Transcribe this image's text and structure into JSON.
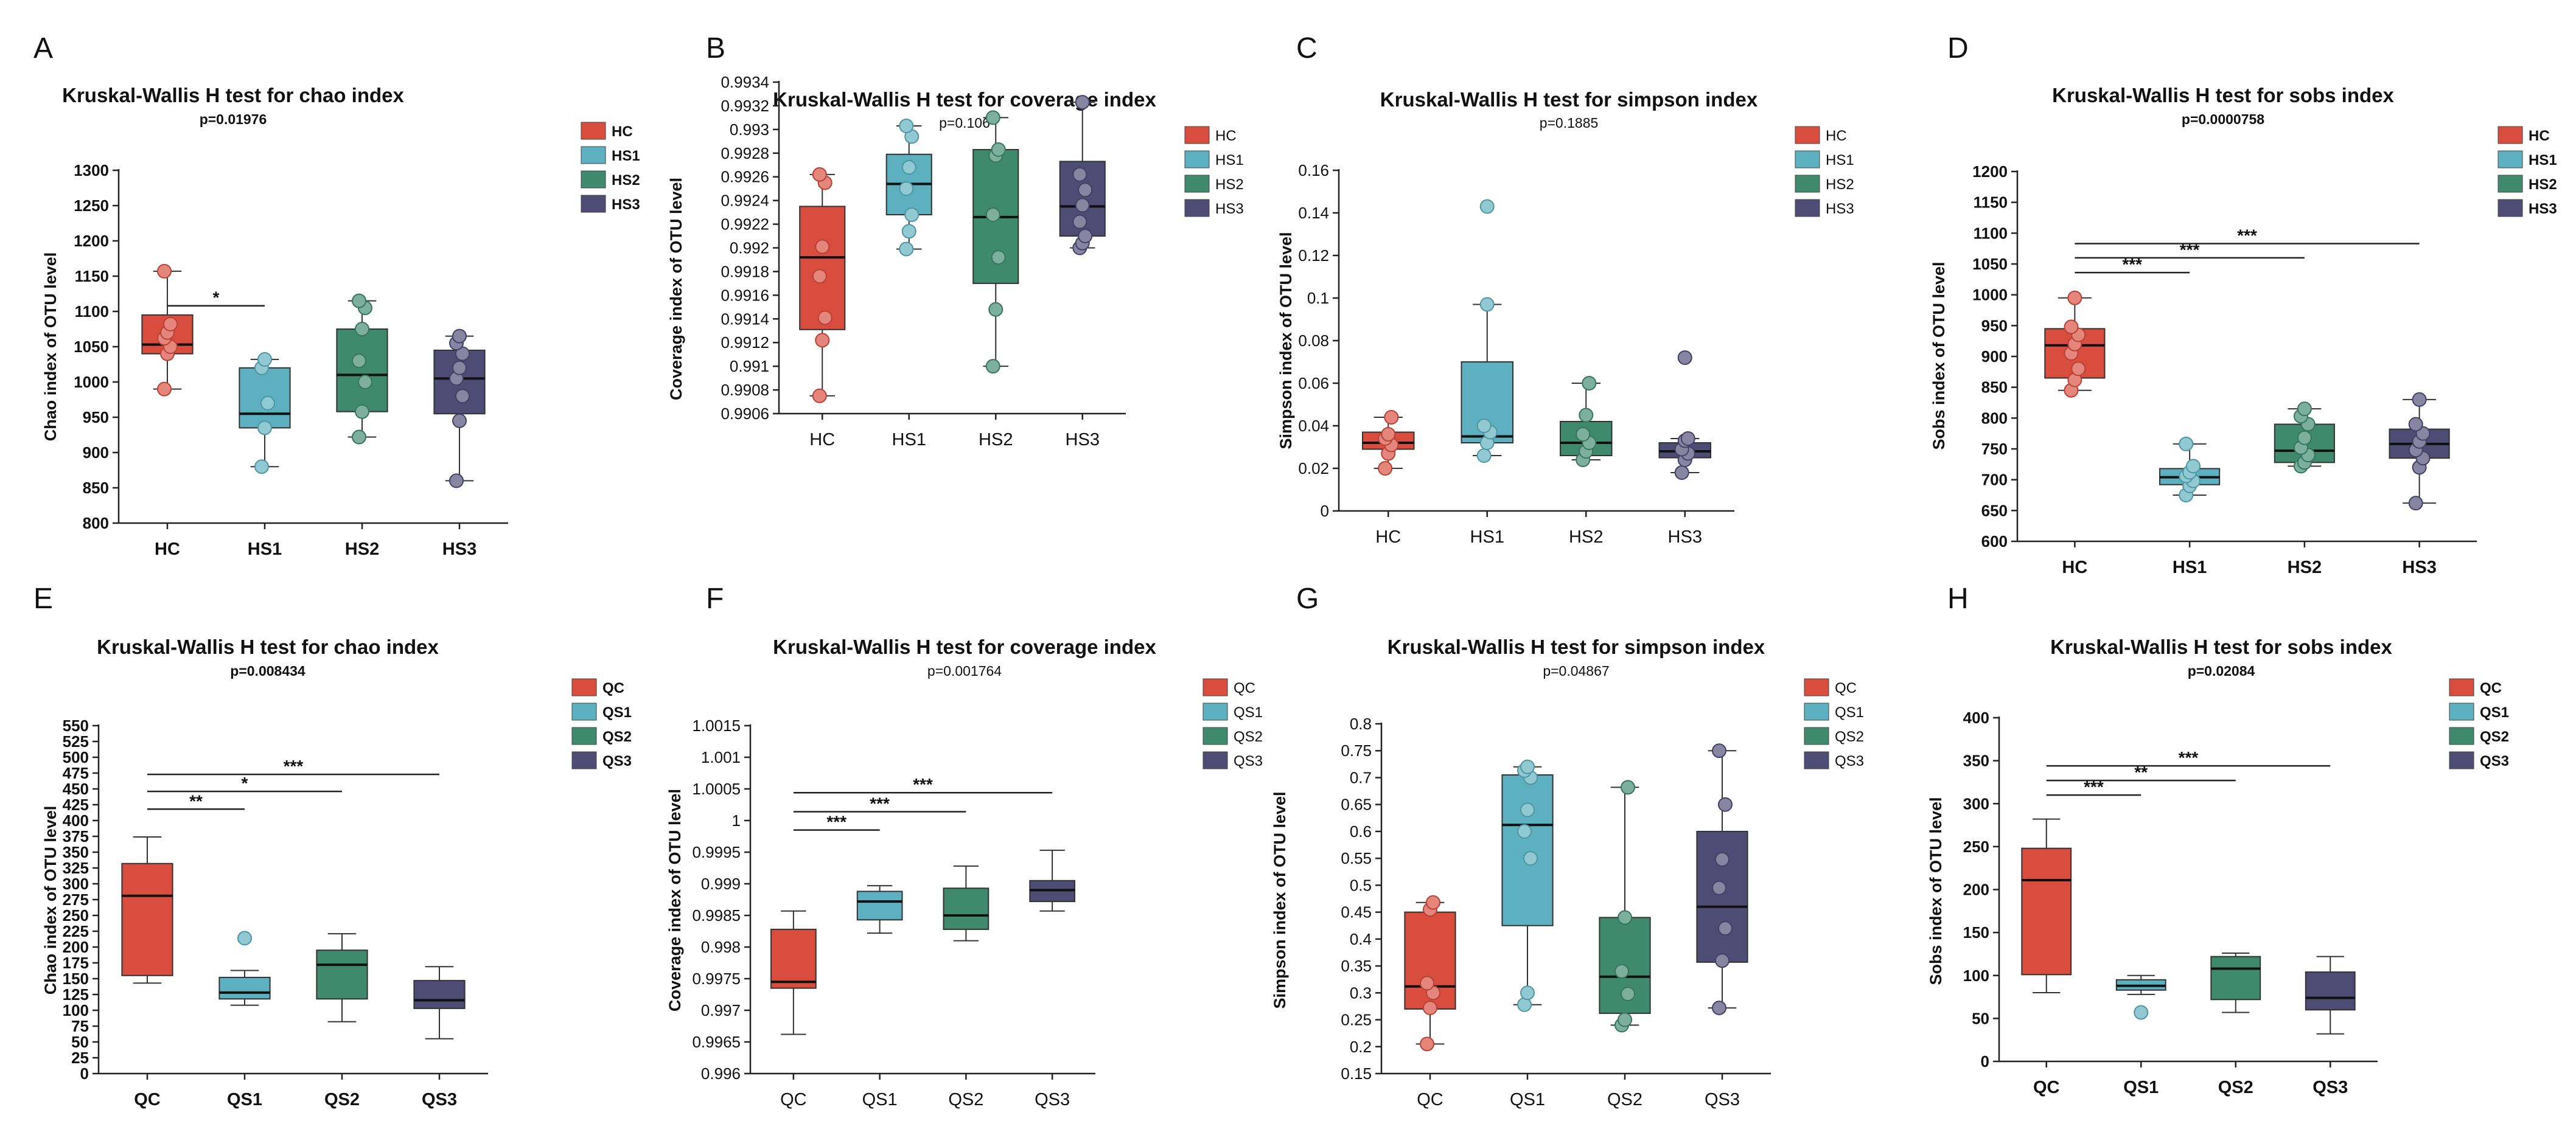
{
  "colors": {
    "C": "#d94d3f",
    "S1": "#5db0bf",
    "S2": "#3f8a6f",
    "S3": "#4e4b75",
    "axis": "#222222",
    "text": "#111111"
  },
  "chart_data": [
    {
      "panel": "A",
      "type": "box",
      "title": "Kruskal-Wallis H test for chao index",
      "subtitle": "p=0.01976",
      "bold_labels": true,
      "ylabel": "Chao index of OTU level",
      "ylim": [
        800,
        1300
      ],
      "yticks": [
        "800",
        "850",
        "900",
        "950",
        "1000",
        "1050",
        "1100",
        "1150",
        "1200",
        "1250",
        "1300"
      ],
      "categories": [
        "HC",
        "HS1",
        "HS2",
        "HS3"
      ],
      "legend": [
        "HC",
        "HS1",
        "HS2",
        "HS3"
      ],
      "boxes": [
        {
          "group": "HC",
          "whisker_low": 990,
          "q1": 1040,
          "median": 1053,
          "q3": 1095,
          "whisker_high": 1157,
          "points": [
            990,
            1040,
            1050,
            1062,
            1070,
            1082,
            1157
          ],
          "outliers": []
        },
        {
          "group": "HS1",
          "whisker_low": 880,
          "q1": 935,
          "median": 955,
          "q3": 1020,
          "whisker_high": 1032,
          "points": [
            880,
            935,
            970,
            1020,
            1032
          ],
          "outliers": []
        },
        {
          "group": "HS2",
          "whisker_low": 922,
          "q1": 958,
          "median": 1010,
          "q3": 1075,
          "whisker_high": 1115,
          "points": [
            922,
            958,
            1000,
            1030,
            1075,
            1105,
            1115
          ],
          "outliers": []
        },
        {
          "group": "HS3",
          "whisker_low": 860,
          "q1": 955,
          "median": 1005,
          "q3": 1045,
          "whisker_high": 1065,
          "points": [
            860,
            945,
            980,
            1005,
            1020,
            1040,
            1055,
            1065
          ],
          "outliers": []
        }
      ],
      "significance": [
        {
          "from": "HC",
          "to": "HS1",
          "label": "*",
          "y": 1108
        }
      ]
    },
    {
      "panel": "B",
      "type": "box",
      "title": "Kruskal-Wallis H test for coverage index",
      "subtitle": "p=0.106",
      "bold_labels": false,
      "ylabel": "Coverage index of OTU level",
      "ylim": [
        0.9906,
        0.9934
      ],
      "yticks": [
        "0.9906",
        "0.9908",
        "0.991",
        "0.9912",
        "0.9914",
        "0.9916",
        "0.9918",
        "0.992",
        "0.9922",
        "0.9924",
        "0.9926",
        "0.9928",
        "0.993",
        "0.9932",
        "0.9934"
      ],
      "categories": [
        "HC",
        "HS1",
        "HS2",
        "HS3"
      ],
      "legend": [
        "HC",
        "HS1",
        "HS2",
        "HS3"
      ],
      "boxes": [
        {
          "group": "HC",
          "whisker_low": 0.99075,
          "q1": 0.99131,
          "median": 0.99192,
          "q3": 0.99235,
          "whisker_high": 0.99262,
          "points": [
            0.99075,
            0.99122,
            0.99141,
            0.99176,
            0.99201,
            0.99255,
            0.99262
          ],
          "outliers": []
        },
        {
          "group": "HS1",
          "whisker_low": 0.99199,
          "q1": 0.99228,
          "median": 0.99254,
          "q3": 0.99279,
          "whisker_high": 0.99303,
          "points": [
            0.99199,
            0.99214,
            0.99228,
            0.9925,
            0.99268,
            0.99294,
            0.99303
          ],
          "outliers": []
        },
        {
          "group": "HS2",
          "whisker_low": 0.991,
          "q1": 0.9917,
          "median": 0.99226,
          "q3": 0.99283,
          "whisker_high": 0.9931,
          "points": [
            0.991,
            0.99148,
            0.99192,
            0.99228,
            0.99278,
            0.99283,
            0.9931
          ],
          "outliers": []
        },
        {
          "group": "HS3",
          "whisker_low": 0.992,
          "q1": 0.9921,
          "median": 0.99235,
          "q3": 0.99273,
          "whisker_high": 0.99323,
          "points": [
            0.992,
            0.99204,
            0.9921,
            0.99222,
            0.99236,
            0.99249,
            0.99262,
            0.99323
          ],
          "outliers": []
        }
      ],
      "significance": []
    },
    {
      "panel": "C",
      "type": "box",
      "title": "Kruskal-Wallis H test for simpson index",
      "subtitle": "p=0.1885",
      "bold_labels": false,
      "ylabel": "Simpson index of OTU level",
      "ylim": [
        0,
        0.16
      ],
      "yticks": [
        "0",
        "0.02",
        "0.04",
        "0.06",
        "0.08",
        "0.1",
        "0.12",
        "0.14",
        "0.16"
      ],
      "categories": [
        "HC",
        "HS1",
        "HS2",
        "HS3"
      ],
      "legend": [
        "HC",
        "HS1",
        "HS2",
        "HS3"
      ],
      "boxes": [
        {
          "group": "HC",
          "whisker_low": 0.02,
          "q1": 0.029,
          "median": 0.032,
          "q3": 0.037,
          "whisker_high": 0.044,
          "points": [
            0.02,
            0.027,
            0.031,
            0.034,
            0.036,
            0.044
          ],
          "outliers": []
        },
        {
          "group": "HS1",
          "whisker_low": 0.026,
          "q1": 0.032,
          "median": 0.035,
          "q3": 0.07,
          "whisker_high": 0.097,
          "points": [
            0.026,
            0.032,
            0.037,
            0.04,
            0.097
          ],
          "outliers": [
            0.143
          ]
        },
        {
          "group": "HS2",
          "whisker_low": 0.024,
          "q1": 0.026,
          "median": 0.032,
          "q3": 0.042,
          "whisker_high": 0.06,
          "points": [
            0.024,
            0.028,
            0.032,
            0.036,
            0.045,
            0.06
          ],
          "outliers": []
        },
        {
          "group": "HS3",
          "whisker_low": 0.018,
          "q1": 0.025,
          "median": 0.028,
          "q3": 0.032,
          "whisker_high": 0.034,
          "points": [
            0.018,
            0.024,
            0.027,
            0.029,
            0.033,
            0.034
          ],
          "outliers": [
            0.072
          ]
        }
      ],
      "significance": []
    },
    {
      "panel": "D",
      "type": "box",
      "title": "Kruskal-Wallis H test for sobs index",
      "subtitle": "p=0.0000758",
      "bold_labels": true,
      "ylabel": "Sobs index of OTU level",
      "ylim": [
        600,
        1200
      ],
      "yticks": [
        "600",
        "650",
        "700",
        "750",
        "800",
        "850",
        "900",
        "950",
        "1000",
        "1050",
        "1100",
        "1150",
        "1200"
      ],
      "categories": [
        "HC",
        "HS1",
        "HS2",
        "HS3"
      ],
      "legend": [
        "HC",
        "HS1",
        "HS2",
        "HS3"
      ],
      "boxes": [
        {
          "group": "HC",
          "whisker_low": 845,
          "q1": 865,
          "median": 918,
          "q3": 945,
          "whisker_high": 995,
          "points": [
            845,
            862,
            880,
            905,
            920,
            935,
            948,
            995
          ],
          "outliers": []
        },
        {
          "group": "HS1",
          "whisker_low": 675,
          "q1": 692,
          "median": 704,
          "q3": 718,
          "whisker_high": 758,
          "points": [
            675,
            690,
            698,
            706,
            712,
            722,
            758
          ],
          "outliers": []
        },
        {
          "group": "HS2",
          "whisker_low": 722,
          "q1": 728,
          "median": 747,
          "q3": 790,
          "whisker_high": 815,
          "points": [
            722,
            728,
            740,
            752,
            768,
            790,
            803,
            815
          ],
          "outliers": []
        },
        {
          "group": "HS3",
          "whisker_low": 662,
          "q1": 735,
          "median": 758,
          "q3": 782,
          "whisker_high": 830,
          "points": [
            662,
            720,
            735,
            748,
            762,
            775,
            790,
            830
          ],
          "outliers": []
        }
      ],
      "significance": [
        {
          "from": "HC",
          "to": "HS1",
          "label": "***",
          "y": 1036
        },
        {
          "from": "HC",
          "to": "HS2",
          "label": "***",
          "y": 1060
        },
        {
          "from": "HC",
          "to": "HS3",
          "label": "***",
          "y": 1083
        }
      ]
    },
    {
      "panel": "E",
      "type": "box",
      "title": "Kruskal-Wallis H test for chao index",
      "subtitle": "p=0.008434",
      "bold_labels": true,
      "ylabel": "Chao index of OTU level",
      "ylim": [
        0,
        550
      ],
      "yticks": [
        "0",
        "25",
        "50",
        "75",
        "100",
        "125",
        "150",
        "175",
        "200",
        "225",
        "250",
        "275",
        "300",
        "325",
        "350",
        "375",
        "400",
        "425",
        "450",
        "475",
        "500",
        "525",
        "550"
      ],
      "categories": [
        "QC",
        "QS1",
        "QS2",
        "QS3"
      ],
      "legend": [
        "QC",
        "QS1",
        "QS2",
        "QS3"
      ],
      "boxes": [
        {
          "group": "QC",
          "whisker_low": 143,
          "q1": 155,
          "median": 281,
          "q3": 332,
          "whisker_high": 374,
          "points": [],
          "outliers": []
        },
        {
          "group": "QS1",
          "whisker_low": 108,
          "q1": 118,
          "median": 128,
          "q3": 152,
          "whisker_high": 163,
          "points": [],
          "outliers": [
            214
          ]
        },
        {
          "group": "QS2",
          "whisker_low": 82,
          "q1": 118,
          "median": 172,
          "q3": 195,
          "whisker_high": 221,
          "points": [],
          "outliers": []
        },
        {
          "group": "QS3",
          "whisker_low": 55,
          "q1": 103,
          "median": 116,
          "q3": 147,
          "whisker_high": 169,
          "points": [],
          "outliers": []
        }
      ],
      "significance": [
        {
          "from": "QC",
          "to": "QS1",
          "label": "**",
          "y": 418
        },
        {
          "from": "QC",
          "to": "QS2",
          "label": "*",
          "y": 446
        },
        {
          "from": "QC",
          "to": "QS3",
          "label": "***",
          "y": 473
        }
      ]
    },
    {
      "panel": "F",
      "type": "box",
      "title": "Kruskal-Wallis H test for coverage index",
      "subtitle": "p=0.001764",
      "bold_labels": false,
      "ylabel": "Coverage index of OTU level",
      "ylim": [
        0.996,
        1.0015
      ],
      "yticks": [
        "0.996",
        "0.9965",
        "0.997",
        "0.9975",
        "0.998",
        "0.9985",
        "0.999",
        "0.9995",
        "1",
        "1.0005",
        "1.001",
        "1.0015"
      ],
      "categories": [
        "QC",
        "QS1",
        "QS2",
        "QS3"
      ],
      "legend": [
        "QC",
        "QS1",
        "QS2",
        "QS3"
      ],
      "boxes": [
        {
          "group": "QC",
          "whisker_low": 0.99662,
          "q1": 0.99735,
          "median": 0.99745,
          "q3": 0.99828,
          "whisker_high": 0.99857,
          "points": [],
          "outliers": []
        },
        {
          "group": "QS1",
          "whisker_low": 0.99822,
          "q1": 0.99843,
          "median": 0.99872,
          "q3": 0.99888,
          "whisker_high": 0.99897,
          "points": [],
          "outliers": []
        },
        {
          "group": "QS2",
          "whisker_low": 0.9981,
          "q1": 0.99828,
          "median": 0.9985,
          "q3": 0.99893,
          "whisker_high": 0.99928,
          "points": [],
          "outliers": []
        },
        {
          "group": "QS3",
          "whisker_low": 0.99857,
          "q1": 0.99872,
          "median": 0.9989,
          "q3": 0.99905,
          "whisker_high": 0.99953,
          "points": [],
          "outliers": []
        }
      ],
      "significance": [
        {
          "from": "QC",
          "to": "QS1",
          "label": "***",
          "y": 0.99985
        },
        {
          "from": "QC",
          "to": "QS2",
          "label": "***",
          "y": 1.00014
        },
        {
          "from": "QC",
          "to": "QS3",
          "label": "***",
          "y": 1.00044
        }
      ]
    },
    {
      "panel": "G",
      "type": "box",
      "title": "Kruskal-Wallis H test for simpson index",
      "subtitle": "p=0.04867",
      "bold_labels": false,
      "ylabel": "Simpson index of OTU level",
      "ylim": [
        0.15,
        0.8
      ],
      "yticks": [
        "0.15",
        "0.2",
        "0.25",
        "0.3",
        "0.35",
        "0.4",
        "0.45",
        "0.5",
        "0.55",
        "0.6",
        "0.65",
        "0.7",
        "0.75",
        "0.8"
      ],
      "categories": [
        "QC",
        "QS1",
        "QS2",
        "QS3"
      ],
      "legend": [
        "QC",
        "QS1",
        "QS2",
        "QS3"
      ],
      "boxes": [
        {
          "group": "QC",
          "whisker_low": 0.205,
          "q1": 0.27,
          "median": 0.312,
          "q3": 0.45,
          "whisker_high": 0.468,
          "points": [
            0.205,
            0.272,
            0.3,
            0.318,
            0.455,
            0.468
          ],
          "outliers": []
        },
        {
          "group": "QS1",
          "whisker_low": 0.278,
          "q1": 0.425,
          "median": 0.612,
          "q3": 0.705,
          "whisker_high": 0.72,
          "points": [
            0.278,
            0.3,
            0.55,
            0.6,
            0.64,
            0.7,
            0.713,
            0.72
          ],
          "outliers": []
        },
        {
          "group": "QS2",
          "whisker_low": 0.24,
          "q1": 0.262,
          "median": 0.33,
          "q3": 0.44,
          "whisker_high": 0.682,
          "points": [
            0.24,
            0.25,
            0.298,
            0.34,
            0.44,
            0.682
          ],
          "outliers": []
        },
        {
          "group": "QS3",
          "whisker_low": 0.272,
          "q1": 0.357,
          "median": 0.46,
          "q3": 0.6,
          "whisker_high": 0.75,
          "points": [
            0.272,
            0.36,
            0.42,
            0.495,
            0.548,
            0.65,
            0.75
          ],
          "outliers": []
        }
      ],
      "significance": []
    },
    {
      "panel": "H",
      "type": "box",
      "title": "Kruskal-Wallis H test for sobs index",
      "subtitle": "p=0.02084",
      "bold_labels": true,
      "ylabel": "Sobs index of OTU level",
      "ylim": [
        0,
        400
      ],
      "yticks": [
        "0",
        "50",
        "100",
        "150",
        "200",
        "250",
        "300",
        "350",
        "400"
      ],
      "categories": [
        "QC",
        "QS1",
        "QS2",
        "QS3"
      ],
      "legend": [
        "QC",
        "QS1",
        "QS2",
        "QS3"
      ],
      "boxes": [
        {
          "group": "QC",
          "whisker_low": 80,
          "q1": 101,
          "median": 211,
          "q3": 248,
          "whisker_high": 282,
          "points": [],
          "outliers": []
        },
        {
          "group": "QS1",
          "whisker_low": 78,
          "q1": 83,
          "median": 88,
          "q3": 95,
          "whisker_high": 100,
          "points": [],
          "outliers": [
            57
          ]
        },
        {
          "group": "QS2",
          "whisker_low": 57,
          "q1": 72,
          "median": 108,
          "q3": 122,
          "whisker_high": 126,
          "points": [],
          "outliers": []
        },
        {
          "group": "QS3",
          "whisker_low": 32,
          "q1": 60,
          "median": 74,
          "q3": 104,
          "whisker_high": 122,
          "points": [],
          "outliers": []
        }
      ],
      "significance": [
        {
          "from": "QC",
          "to": "QS1",
          "label": "***",
          "y": 310
        },
        {
          "from": "QC",
          "to": "QS2",
          "label": "**",
          "y": 327
        },
        {
          "from": "QC",
          "to": "QS3",
          "label": "***",
          "y": 344
        }
      ]
    }
  ]
}
